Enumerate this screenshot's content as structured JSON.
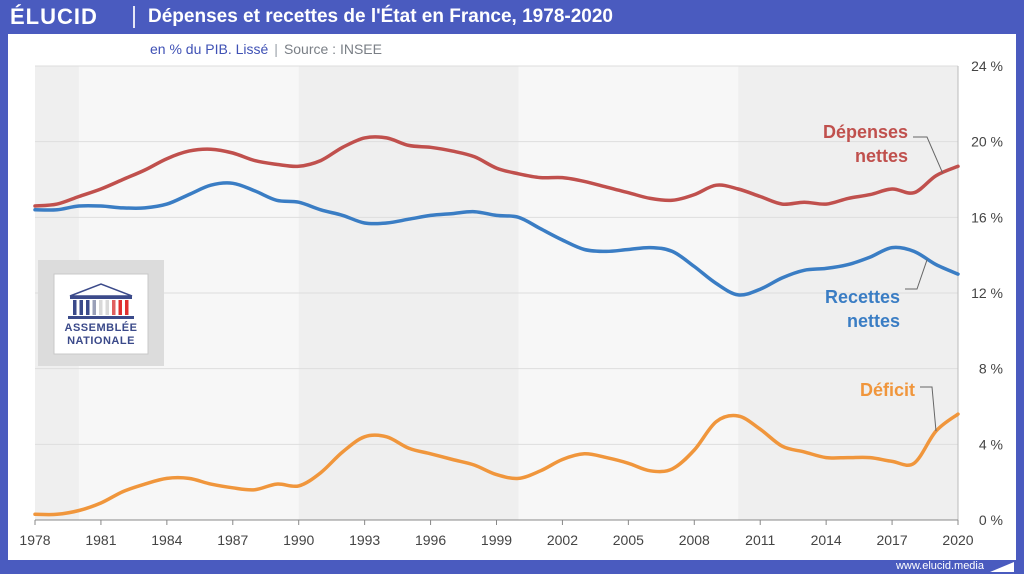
{
  "header": {
    "brand": "ÉLUCID",
    "title": "Dépenses et recettes de l'État en France, 1978-2020",
    "subtitle_unit": "en % du PIB. Lissé",
    "subtitle_sep": "|",
    "subtitle_source": "Source : INSEE"
  },
  "logo": {
    "line1": "ASSEMBLÉE",
    "line2": "NATIONALE"
  },
  "footer": {
    "url": "www.elucid.media"
  },
  "colors": {
    "frame": "#4a5bbf",
    "depenses": "#c0504d",
    "recettes": "#3a7dc4",
    "deficit": "#f0963c",
    "band": "#efefef"
  },
  "chart_data": {
    "type": "line",
    "title": "Dépenses et recettes de l'État en France, 1978-2020",
    "subtitle": "en % du PIB. Lissé",
    "xlim": [
      1978,
      2020
    ],
    "ylim": [
      0,
      24
    ],
    "x_ticks": [
      "1978",
      "1981",
      "1984",
      "1987",
      "1990",
      "1993",
      "1996",
      "1999",
      "2002",
      "2005",
      "2008",
      "2011",
      "2014",
      "2017",
      "2020"
    ],
    "y_ticks": [
      "0 %",
      "4 %",
      "8 %",
      "12 %",
      "16 %",
      "20 %",
      "24 %"
    ],
    "y_axis_side": "right",
    "grid": true,
    "shaded_periods": [
      [
        1978,
        1980
      ],
      [
        1990,
        2000
      ],
      [
        2010,
        2020
      ]
    ],
    "x": [
      1978,
      1979,
      1980,
      1981,
      1982,
      1983,
      1984,
      1985,
      1986,
      1987,
      1988,
      1989,
      1990,
      1991,
      1992,
      1993,
      1994,
      1995,
      1996,
      1997,
      1998,
      1999,
      2000,
      2001,
      2002,
      2003,
      2004,
      2005,
      2006,
      2007,
      2008,
      2009,
      2010,
      2011,
      2012,
      2013,
      2014,
      2015,
      2016,
      2017,
      2018,
      2019,
      2020
    ],
    "series": [
      {
        "name": "Dépenses nettes",
        "color": "#c0504d",
        "values": [
          16.6,
          16.7,
          17.1,
          17.5,
          18.0,
          18.5,
          19.1,
          19.5,
          19.6,
          19.4,
          19.0,
          18.8,
          18.7,
          19.0,
          19.7,
          20.2,
          20.2,
          19.8,
          19.7,
          19.5,
          19.2,
          18.6,
          18.3,
          18.1,
          18.1,
          17.9,
          17.6,
          17.3,
          17.0,
          16.9,
          17.2,
          17.7,
          17.5,
          17.1,
          16.7,
          16.8,
          16.7,
          17.0,
          17.2,
          17.5,
          17.3,
          18.2,
          18.7
        ]
      },
      {
        "name": "Recettes nettes",
        "color": "#3a7dc4",
        "values": [
          16.4,
          16.4,
          16.6,
          16.6,
          16.5,
          16.5,
          16.7,
          17.2,
          17.7,
          17.8,
          17.4,
          16.9,
          16.8,
          16.4,
          16.1,
          15.7,
          15.7,
          15.9,
          16.1,
          16.2,
          16.3,
          16.1,
          16.0,
          15.4,
          14.8,
          14.3,
          14.2,
          14.3,
          14.4,
          14.2,
          13.4,
          12.5,
          11.9,
          12.2,
          12.8,
          13.2,
          13.3,
          13.5,
          13.9,
          14.4,
          14.2,
          13.5,
          13.0
        ]
      },
      {
        "name": "Déficit",
        "color": "#f0963c",
        "values": [
          0.3,
          0.3,
          0.5,
          0.9,
          1.5,
          1.9,
          2.2,
          2.2,
          1.9,
          1.7,
          1.6,
          1.9,
          1.8,
          2.5,
          3.6,
          4.4,
          4.4,
          3.8,
          3.5,
          3.2,
          2.9,
          2.4,
          2.2,
          2.6,
          3.2,
          3.5,
          3.3,
          3.0,
          2.6,
          2.7,
          3.7,
          5.2,
          5.5,
          4.8,
          3.9,
          3.6,
          3.3,
          3.3,
          3.3,
          3.1,
          3.0,
          4.7,
          5.6
        ]
      }
    ],
    "annotations": [
      {
        "series": "Dépenses nettes",
        "lines": [
          "Dépenses",
          "nettes"
        ]
      },
      {
        "series": "Recettes nettes",
        "lines": [
          "Recettes",
          "nettes"
        ]
      },
      {
        "series": "Déficit",
        "lines": [
          "Déficit"
        ]
      }
    ]
  }
}
